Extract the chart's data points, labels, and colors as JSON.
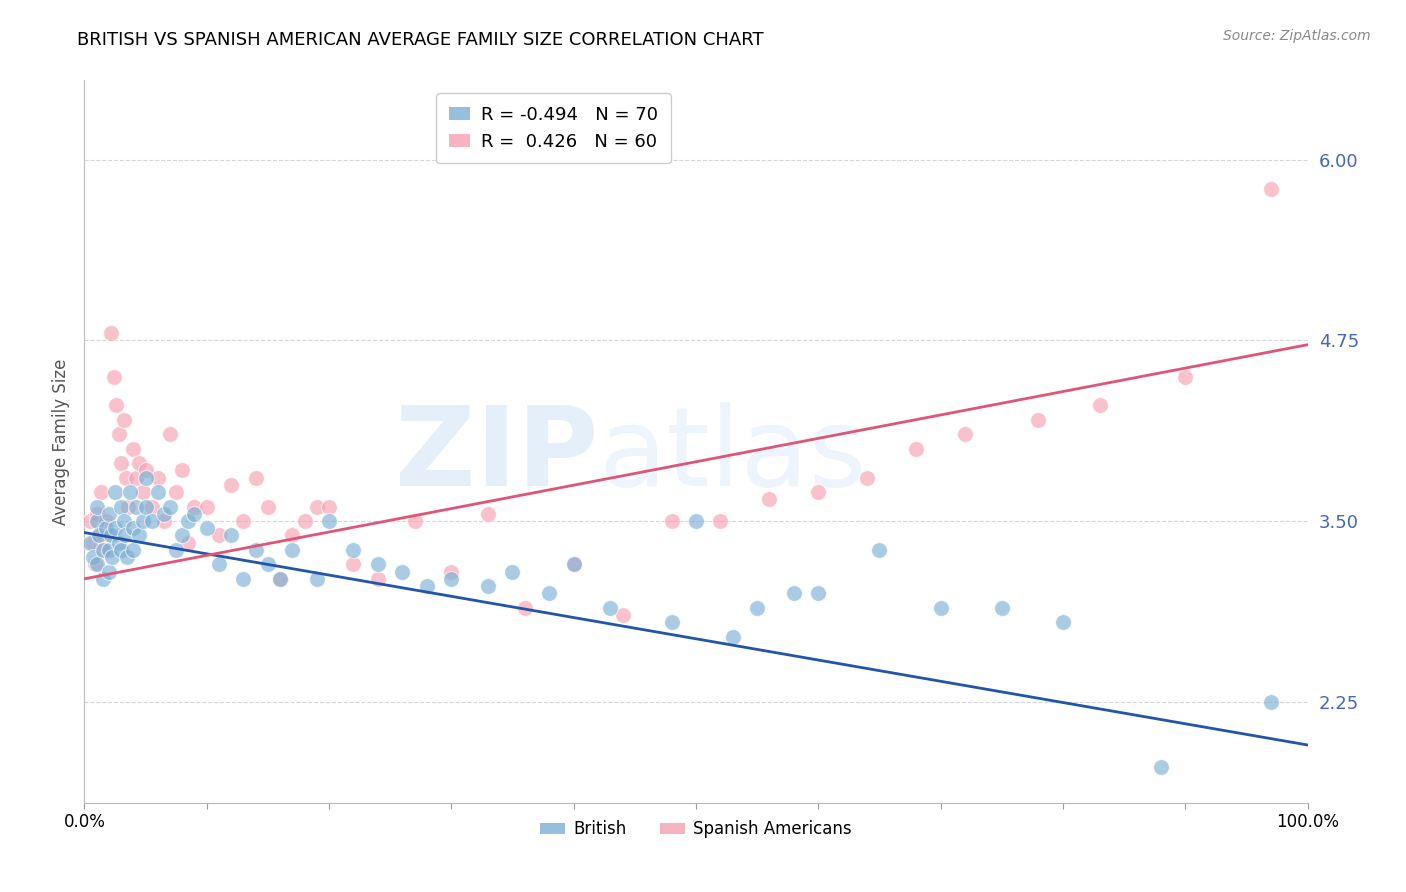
{
  "title": "BRITISH VS SPANISH AMERICAN AVERAGE FAMILY SIZE CORRELATION CHART",
  "source": "Source: ZipAtlas.com",
  "ylabel": "Average Family Size",
  "yticks": [
    2.25,
    3.5,
    4.75,
    6.0
  ],
  "xlim": [
    0,
    1
  ],
  "ylim": [
    1.55,
    6.55
  ],
  "british_color": "#7BAFD4",
  "spanish_color": "#F5A0B0",
  "british_R": -0.494,
  "british_N": 70,
  "spanish_R": 0.426,
  "spanish_N": 60,
  "tick_color": "#4466BB",
  "grid_color": "#CCCCCC",
  "title_fontsize": 13,
  "watermark_text": "ZIPatlas",
  "watermark_color": "#AACCEE",
  "british_points_x": [
    0.005,
    0.007,
    0.01,
    0.01,
    0.01,
    0.012,
    0.015,
    0.015,
    0.018,
    0.02,
    0.02,
    0.02,
    0.022,
    0.023,
    0.025,
    0.025,
    0.028,
    0.03,
    0.03,
    0.032,
    0.033,
    0.035,
    0.037,
    0.04,
    0.04,
    0.042,
    0.045,
    0.048,
    0.05,
    0.05,
    0.055,
    0.06,
    0.065,
    0.07,
    0.075,
    0.08,
    0.085,
    0.09,
    0.1,
    0.11,
    0.12,
    0.13,
    0.14,
    0.15,
    0.16,
    0.17,
    0.19,
    0.2,
    0.22,
    0.24,
    0.26,
    0.28,
    0.3,
    0.33,
    0.35,
    0.38,
    0.4,
    0.43,
    0.48,
    0.5,
    0.53,
    0.55,
    0.58,
    0.6,
    0.65,
    0.7,
    0.75,
    0.8,
    0.88,
    0.97
  ],
  "british_points_y": [
    3.35,
    3.25,
    3.5,
    3.6,
    3.2,
    3.4,
    3.3,
    3.1,
    3.45,
    3.55,
    3.3,
    3.15,
    3.4,
    3.25,
    3.7,
    3.45,
    3.35,
    3.6,
    3.3,
    3.5,
    3.4,
    3.25,
    3.7,
    3.45,
    3.3,
    3.6,
    3.4,
    3.5,
    3.8,
    3.6,
    3.5,
    3.7,
    3.55,
    3.6,
    3.3,
    3.4,
    3.5,
    3.55,
    3.45,
    3.2,
    3.4,
    3.1,
    3.3,
    3.2,
    3.1,
    3.3,
    3.1,
    3.5,
    3.3,
    3.2,
    3.15,
    3.05,
    3.1,
    3.05,
    3.15,
    3.0,
    3.2,
    2.9,
    2.8,
    3.5,
    2.7,
    2.9,
    3.0,
    3.0,
    3.3,
    2.9,
    2.9,
    2.8,
    1.8,
    2.25
  ],
  "spanish_points_x": [
    0.005,
    0.007,
    0.009,
    0.01,
    0.012,
    0.014,
    0.016,
    0.018,
    0.02,
    0.022,
    0.024,
    0.026,
    0.028,
    0.03,
    0.032,
    0.034,
    0.036,
    0.04,
    0.042,
    0.045,
    0.048,
    0.05,
    0.055,
    0.06,
    0.065,
    0.07,
    0.075,
    0.08,
    0.085,
    0.09,
    0.1,
    0.11,
    0.12,
    0.13,
    0.14,
    0.15,
    0.16,
    0.17,
    0.18,
    0.19,
    0.2,
    0.22,
    0.24,
    0.27,
    0.3,
    0.33,
    0.36,
    0.4,
    0.44,
    0.48,
    0.52,
    0.56,
    0.6,
    0.64,
    0.68,
    0.72,
    0.78,
    0.83,
    0.9,
    0.97
  ],
  "spanish_points_y": [
    3.5,
    3.35,
    3.2,
    3.55,
    3.4,
    3.7,
    3.3,
    3.5,
    3.4,
    4.8,
    4.5,
    4.3,
    4.1,
    3.9,
    4.2,
    3.8,
    3.6,
    4.0,
    3.8,
    3.9,
    3.7,
    3.85,
    3.6,
    3.8,
    3.5,
    4.1,
    3.7,
    3.85,
    3.35,
    3.6,
    3.6,
    3.4,
    3.75,
    3.5,
    3.8,
    3.6,
    3.1,
    3.4,
    3.5,
    3.6,
    3.6,
    3.2,
    3.1,
    3.5,
    3.15,
    3.55,
    2.9,
    3.2,
    2.85,
    3.5,
    3.5,
    3.65,
    3.7,
    3.8,
    4.0,
    4.1,
    4.2,
    4.3,
    4.5,
    5.8
  ],
  "british_line_x0": 0.0,
  "british_line_y0": 3.42,
  "british_line_x1": 1.0,
  "british_line_y1": 1.95,
  "spanish_line_x0": 0.0,
  "spanish_line_y0": 3.1,
  "spanish_line_x1": 1.0,
  "spanish_line_y1": 4.72
}
